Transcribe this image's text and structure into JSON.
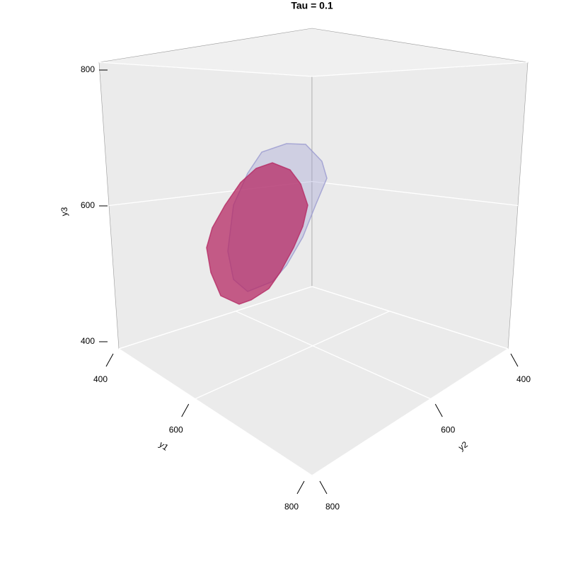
{
  "chart_data": {
    "type": "surface3d",
    "title": "Tau = 0.1",
    "xlabel": "y1",
    "ylabel": "y2",
    "zlabel": "y3",
    "xlim": [
      400,
      800
    ],
    "ylim": [
      400,
      800
    ],
    "zlim": [
      400,
      800
    ],
    "xticks": [
      400,
      600,
      800
    ],
    "yticks": [
      400,
      600,
      800
    ],
    "zticks": [
      400,
      600,
      800
    ],
    "grid": true,
    "surfaces": [
      {
        "color": "#9a9ad0"
      },
      {
        "color": "#b52a64"
      }
    ]
  }
}
